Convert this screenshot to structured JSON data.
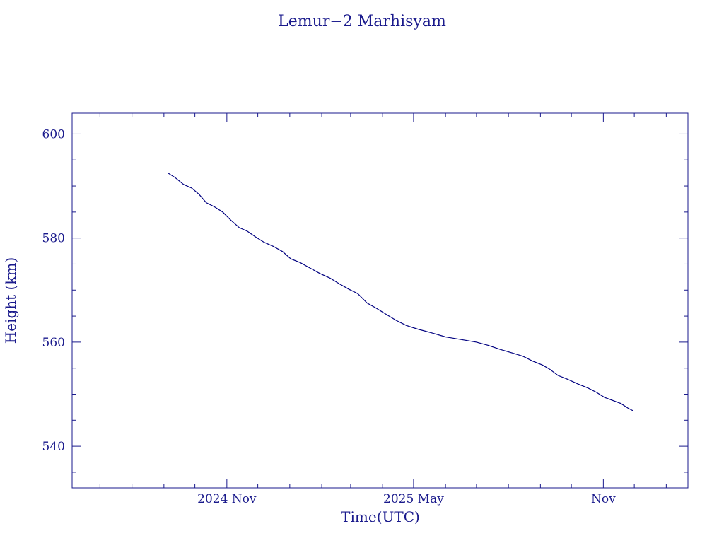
{
  "chart_data": {
    "type": "line",
    "title": "Lemur−2 Marhisyam",
    "xlabel": "Time(UTC)",
    "ylabel": "Height (km)",
    "x_tick_labels": [
      {
        "date": "2024-11-01",
        "label": "2024 Nov"
      },
      {
        "date": "2025-05-01",
        "label": "2025 May"
      },
      {
        "date": "2025-11-01",
        "label": "Nov"
      }
    ],
    "y_tick_labels": [
      540,
      560,
      580,
      600
    ],
    "xlim": [
      "2024-06-04",
      "2026-01-22"
    ],
    "ylim": [
      532,
      604
    ],
    "line_color": "#000080",
    "axis_color": "#1a1a8c",
    "series": [
      {
        "points": [
          [
            "2024-09-05",
            592.5
          ],
          [
            "2024-09-12",
            591.6
          ],
          [
            "2024-09-20",
            590.3
          ],
          [
            "2024-09-28",
            589.6
          ],
          [
            "2024-10-05",
            588.4
          ],
          [
            "2024-10-12",
            586.8
          ],
          [
            "2024-10-20",
            586.0
          ],
          [
            "2024-10-28",
            585.0
          ],
          [
            "2024-11-05",
            583.4
          ],
          [
            "2024-11-13",
            582.0
          ],
          [
            "2024-11-21",
            581.3
          ],
          [
            "2024-11-29",
            580.2
          ],
          [
            "2024-12-07",
            579.2
          ],
          [
            "2024-12-16",
            578.4
          ],
          [
            "2024-12-25",
            577.4
          ],
          [
            "2025-01-02",
            576.0
          ],
          [
            "2025-01-11",
            575.3
          ],
          [
            "2025-01-20",
            574.3
          ],
          [
            "2025-01-30",
            573.2
          ],
          [
            "2025-02-09",
            572.3
          ],
          [
            "2025-02-18",
            571.2
          ],
          [
            "2025-02-27",
            570.2
          ],
          [
            "2025-03-08",
            569.3
          ],
          [
            "2025-03-17",
            567.5
          ],
          [
            "2025-03-26",
            566.5
          ],
          [
            "2025-04-04",
            565.4
          ],
          [
            "2025-04-14",
            564.2
          ],
          [
            "2025-04-24",
            563.2
          ],
          [
            "2025-05-05",
            562.5
          ],
          [
            "2025-05-18",
            561.8
          ],
          [
            "2025-06-01",
            561.0
          ],
          [
            "2025-06-16",
            560.5
          ],
          [
            "2025-07-01",
            560.0
          ],
          [
            "2025-07-12",
            559.4
          ],
          [
            "2025-07-24",
            558.6
          ],
          [
            "2025-08-05",
            557.9
          ],
          [
            "2025-08-15",
            557.3
          ],
          [
            "2025-08-24",
            556.4
          ],
          [
            "2025-09-03",
            555.6
          ],
          [
            "2025-09-10",
            554.8
          ],
          [
            "2025-09-18",
            553.6
          ],
          [
            "2025-09-27",
            552.9
          ],
          [
            "2025-10-07",
            552.0
          ],
          [
            "2025-10-17",
            551.2
          ],
          [
            "2025-10-25",
            550.4
          ],
          [
            "2025-11-02",
            549.4
          ],
          [
            "2025-11-10",
            548.8
          ],
          [
            "2025-11-18",
            548.2
          ],
          [
            "2025-11-25",
            547.3
          ],
          [
            "2025-11-30",
            546.8
          ]
        ]
      }
    ]
  }
}
